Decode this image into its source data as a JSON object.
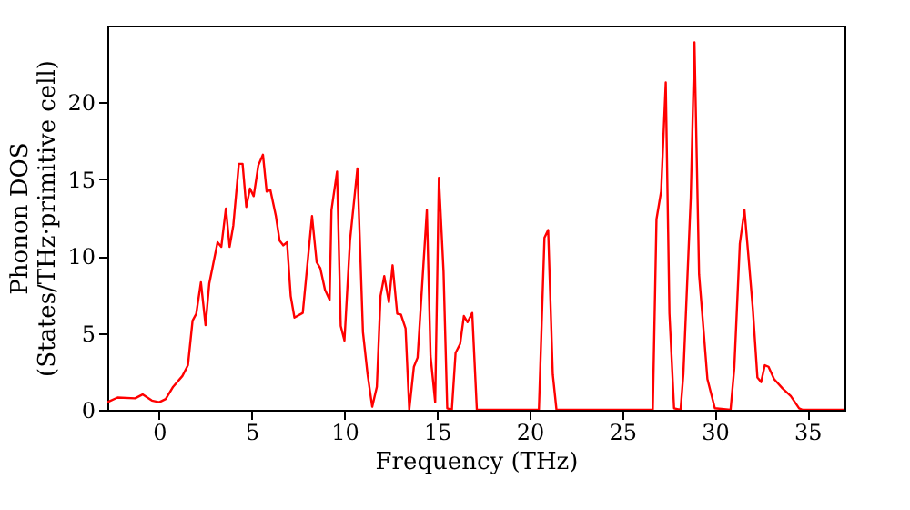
{
  "chart_data": {
    "type": "line",
    "xlabel": "Frequency (THz)",
    "ylabel": "Phonon DOS\n(States/THz·primitive cell)",
    "xlim": [
      -2.8,
      37
    ],
    "ylim": [
      0,
      25
    ],
    "xticks": [
      0,
      5,
      10,
      15,
      20,
      25,
      30,
      35
    ],
    "yticks": [
      0,
      5,
      10,
      15,
      20
    ],
    "grid": false,
    "legend": false,
    "marker": "none",
    "line_style": "solid",
    "series": [
      {
        "color": "#ff0000",
        "x": [
          -2.8,
          -2.25,
          -1.3,
          -0.9,
          -0.4,
          0,
          0.35,
          0.75,
          1.25,
          1.55,
          1.8,
          2.0,
          2.25,
          2.5,
          2.7,
          3.15,
          3.35,
          3.6,
          3.8,
          4.0,
          4.3,
          4.5,
          4.7,
          4.9,
          5.1,
          5.35,
          5.6,
          5.8,
          6.0,
          6.3,
          6.5,
          6.7,
          6.9,
          7.1,
          7.3,
          7.75,
          8.25,
          8.5,
          8.7,
          8.95,
          9.2,
          9.3,
          9.6,
          9.8,
          10.0,
          10.3,
          10.7,
          11.0,
          11.25,
          11.5,
          11.75,
          11.95,
          12.15,
          12.4,
          12.6,
          12.85,
          13.05,
          13.3,
          13.5,
          13.75,
          13.95,
          14.45,
          14.65,
          14.9,
          15.1,
          15.35,
          15.55,
          15.8,
          16.0,
          16.25,
          16.45,
          16.65,
          16.9,
          17.15,
          20.5,
          20.8,
          21.0,
          21.25,
          21.45,
          26.65,
          26.85,
          27.1,
          27.35,
          27.55,
          27.8,
          28.15,
          28.3,
          28.7,
          28.9,
          29.15,
          29.4,
          29.6,
          30.0,
          30.85,
          31.05,
          31.35,
          31.6,
          31.8,
          32.05,
          32.3,
          32.5,
          32.7,
          32.9,
          33.2,
          33.65,
          34.1,
          34.55,
          34.75,
          37
        ],
        "values": [
          0.5,
          0.8,
          0.75,
          1.0,
          0.6,
          0.5,
          0.7,
          1.5,
          2.2,
          2.9,
          5.8,
          6.25,
          8.3,
          5.5,
          8.2,
          10.9,
          10.6,
          13.1,
          10.6,
          12,
          16.0,
          16.0,
          13.2,
          14.4,
          13.9,
          15.9,
          16.6,
          14.2,
          14.3,
          12.6,
          11,
          10.7,
          10.9,
          7.4,
          6.0,
          6.3,
          12.6,
          9.6,
          9.2,
          7.8,
          7.15,
          13,
          15.5,
          5.45,
          4.5,
          11,
          15.7,
          5.05,
          2.3,
          0.2,
          1.5,
          7.4,
          8.7,
          7.0,
          9.4,
          6.25,
          6.2,
          5.3,
          0,
          2.8,
          3.4,
          13.0,
          3.5,
          0.5,
          15.1,
          9,
          0.1,
          0,
          3.7,
          4.3,
          6.1,
          5.7,
          6.3,
          0,
          0,
          11.2,
          11.7,
          2.3,
          0,
          0,
          12.4,
          14.2,
          21.3,
          6.25,
          0.1,
          0,
          2.3,
          13.8,
          23.9,
          8.8,
          5.05,
          2.0,
          0.1,
          0,
          2.7,
          10.8,
          13.0,
          10.2,
          6.6,
          2.1,
          1.8,
          2.9,
          2.8,
          2.0,
          1.4,
          0.9,
          0.1,
          0,
          0
        ]
      }
    ]
  }
}
